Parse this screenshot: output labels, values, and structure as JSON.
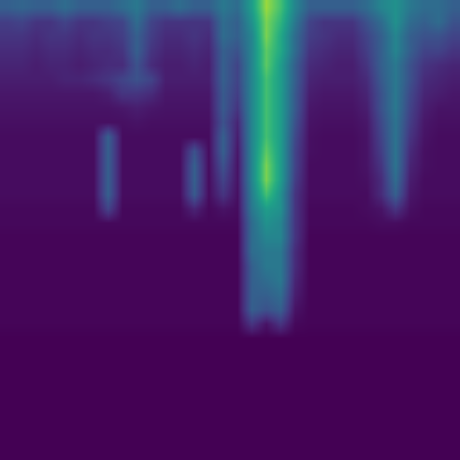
{
  "chart_data": {
    "type": "heatmap",
    "tick_labels": false,
    "grid": false,
    "zlim": [
      0,
      1
    ],
    "cells": [
      [
        0.3,
        0.32,
        0.3,
        0.3,
        0.35,
        0.3,
        0.3,
        0.3,
        0.35,
        0.4,
        0.3,
        0.3,
        0.35,
        0.3,
        0.3,
        0.4,
        0.35,
        0.55,
        0.85,
        0.7,
        0.45,
        0.3,
        0.3,
        0.3,
        0.3,
        0.35,
        0.45,
        0.5,
        0.4,
        0.35,
        0.35,
        0.3
      ],
      [
        0.18,
        0.2,
        0.15,
        0.15,
        0.2,
        0.15,
        0.15,
        0.18,
        0.2,
        0.35,
        0.2,
        0.15,
        0.15,
        0.15,
        0.15,
        0.35,
        0.3,
        0.5,
        0.8,
        0.65,
        0.4,
        0.2,
        0.15,
        0.15,
        0.15,
        0.25,
        0.35,
        0.5,
        0.35,
        0.3,
        0.35,
        0.25
      ],
      [
        0.15,
        0.15,
        0.12,
        0.15,
        0.15,
        0.12,
        0.15,
        0.15,
        0.18,
        0.3,
        0.18,
        0.12,
        0.12,
        0.15,
        0.12,
        0.35,
        0.3,
        0.45,
        0.8,
        0.6,
        0.35,
        0.18,
        0.15,
        0.12,
        0.12,
        0.2,
        0.3,
        0.45,
        0.3,
        0.25,
        0.25,
        0.2
      ],
      [
        0.12,
        0.12,
        0.1,
        0.12,
        0.12,
        0.1,
        0.12,
        0.12,
        0.15,
        0.3,
        0.15,
        0.1,
        0.1,
        0.12,
        0.1,
        0.3,
        0.25,
        0.45,
        0.75,
        0.6,
        0.35,
        0.15,
        0.12,
        0.1,
        0.1,
        0.18,
        0.3,
        0.45,
        0.3,
        0.2,
        0.2,
        0.15
      ],
      [
        0.1,
        0.1,
        0.08,
        0.1,
        0.1,
        0.08,
        0.1,
        0.12,
        0.12,
        0.25,
        0.12,
        0.08,
        0.08,
        0.1,
        0.08,
        0.3,
        0.2,
        0.45,
        0.75,
        0.55,
        0.3,
        0.12,
        0.1,
        0.08,
        0.08,
        0.15,
        0.3,
        0.4,
        0.25,
        0.15,
        0.12,
        0.1
      ],
      [
        0.08,
        0.08,
        0.08,
        0.08,
        0.1,
        0.1,
        0.12,
        0.15,
        0.2,
        0.25,
        0.2,
        0.08,
        0.08,
        0.08,
        0.08,
        0.3,
        0.2,
        0.45,
        0.7,
        0.55,
        0.3,
        0.1,
        0.08,
        0.08,
        0.08,
        0.12,
        0.28,
        0.4,
        0.25,
        0.12,
        0.1,
        0.08
      ],
      [
        0.06,
        0.06,
        0.06,
        0.06,
        0.06,
        0.06,
        0.06,
        0.08,
        0.15,
        0.15,
        0.12,
        0.06,
        0.06,
        0.06,
        0.06,
        0.28,
        0.18,
        0.45,
        0.7,
        0.55,
        0.28,
        0.08,
        0.06,
        0.06,
        0.06,
        0.1,
        0.25,
        0.4,
        0.22,
        0.1,
        0.08,
        0.06
      ],
      [
        0.05,
        0.05,
        0.05,
        0.05,
        0.05,
        0.05,
        0.05,
        0.05,
        0.06,
        0.08,
        0.06,
        0.05,
        0.05,
        0.05,
        0.05,
        0.28,
        0.15,
        0.45,
        0.7,
        0.55,
        0.28,
        0.06,
        0.05,
        0.05,
        0.05,
        0.08,
        0.25,
        0.4,
        0.2,
        0.08,
        0.05,
        0.05
      ],
      [
        0.04,
        0.04,
        0.04,
        0.04,
        0.04,
        0.04,
        0.04,
        0.04,
        0.04,
        0.05,
        0.04,
        0.04,
        0.04,
        0.04,
        0.04,
        0.25,
        0.1,
        0.45,
        0.7,
        0.55,
        0.25,
        0.05,
        0.04,
        0.04,
        0.04,
        0.06,
        0.22,
        0.38,
        0.18,
        0.06,
        0.04,
        0.04
      ],
      [
        0.03,
        0.03,
        0.03,
        0.03,
        0.03,
        0.03,
        0.03,
        0.3,
        0.03,
        0.03,
        0.03,
        0.03,
        0.03,
        0.03,
        0.03,
        0.3,
        0.08,
        0.45,
        0.7,
        0.55,
        0.22,
        0.04,
        0.03,
        0.03,
        0.03,
        0.05,
        0.2,
        0.38,
        0.15,
        0.05,
        0.03,
        0.03
      ],
      [
        0.03,
        0.03,
        0.03,
        0.03,
        0.03,
        0.03,
        0.03,
        0.3,
        0.03,
        0.03,
        0.03,
        0.03,
        0.03,
        0.25,
        0.03,
        0.3,
        0.06,
        0.45,
        0.75,
        0.55,
        0.2,
        0.04,
        0.03,
        0.03,
        0.03,
        0.05,
        0.18,
        0.38,
        0.12,
        0.04,
        0.03,
        0.03
      ],
      [
        0.03,
        0.03,
        0.03,
        0.03,
        0.03,
        0.03,
        0.03,
        0.3,
        0.03,
        0.03,
        0.03,
        0.03,
        0.03,
        0.3,
        0.03,
        0.25,
        0.05,
        0.45,
        0.8,
        0.55,
        0.2,
        0.03,
        0.03,
        0.03,
        0.03,
        0.05,
        0.15,
        0.38,
        0.1,
        0.04,
        0.03,
        0.03
      ],
      [
        0.03,
        0.03,
        0.03,
        0.03,
        0.03,
        0.03,
        0.03,
        0.3,
        0.03,
        0.03,
        0.03,
        0.03,
        0.03,
        0.3,
        0.03,
        0.2,
        0.05,
        0.45,
        0.8,
        0.55,
        0.18,
        0.03,
        0.03,
        0.03,
        0.03,
        0.04,
        0.12,
        0.35,
        0.08,
        0.03,
        0.03,
        0.03
      ],
      [
        0.03,
        0.03,
        0.03,
        0.03,
        0.03,
        0.03,
        0.03,
        0.3,
        0.03,
        0.03,
        0.03,
        0.03,
        0.03,
        0.28,
        0.03,
        0.15,
        0.04,
        0.42,
        0.7,
        0.5,
        0.15,
        0.03,
        0.03,
        0.03,
        0.03,
        0.03,
        0.12,
        0.3,
        0.06,
        0.03,
        0.03,
        0.03
      ],
      [
        0.02,
        0.02,
        0.02,
        0.02,
        0.02,
        0.02,
        0.02,
        0.2,
        0.02,
        0.02,
        0.02,
        0.02,
        0.02,
        0.1,
        0.02,
        0.05,
        0.03,
        0.4,
        0.55,
        0.5,
        0.15,
        0.02,
        0.02,
        0.02,
        0.02,
        0.03,
        0.05,
        0.15,
        0.04,
        0.02,
        0.02,
        0.02
      ],
      [
        0.02,
        0.02,
        0.02,
        0.02,
        0.02,
        0.02,
        0.02,
        0.02,
        0.02,
        0.02,
        0.02,
        0.02,
        0.02,
        0.02,
        0.02,
        0.02,
        0.02,
        0.35,
        0.5,
        0.45,
        0.15,
        0.02,
        0.02,
        0.02,
        0.02,
        0.02,
        0.03,
        0.03,
        0.02,
        0.02,
        0.02,
        0.02
      ],
      [
        0.01,
        0.01,
        0.01,
        0.01,
        0.01,
        0.01,
        0.01,
        0.01,
        0.01,
        0.01,
        0.01,
        0.01,
        0.01,
        0.01,
        0.01,
        0.01,
        0.01,
        0.35,
        0.45,
        0.45,
        0.15,
        0.01,
        0.01,
        0.01,
        0.01,
        0.01,
        0.01,
        0.01,
        0.01,
        0.01,
        0.01,
        0.01
      ],
      [
        0.01,
        0.01,
        0.01,
        0.01,
        0.01,
        0.01,
        0.01,
        0.01,
        0.01,
        0.01,
        0.01,
        0.01,
        0.01,
        0.01,
        0.01,
        0.01,
        0.01,
        0.35,
        0.4,
        0.4,
        0.12,
        0.01,
        0.01,
        0.01,
        0.01,
        0.01,
        0.01,
        0.01,
        0.01,
        0.01,
        0.01,
        0.01
      ],
      [
        0.01,
        0.01,
        0.01,
        0.01,
        0.01,
        0.01,
        0.01,
        0.01,
        0.01,
        0.01,
        0.01,
        0.01,
        0.01,
        0.01,
        0.01,
        0.01,
        0.01,
        0.3,
        0.4,
        0.4,
        0.12,
        0.01,
        0.01,
        0.01,
        0.01,
        0.01,
        0.01,
        0.01,
        0.01,
        0.01,
        0.01,
        0.01
      ],
      [
        0.01,
        0.01,
        0.01,
        0.01,
        0.01,
        0.01,
        0.01,
        0.01,
        0.01,
        0.01,
        0.01,
        0.01,
        0.01,
        0.01,
        0.01,
        0.01,
        0.01,
        0.3,
        0.35,
        0.4,
        0.1,
        0.01,
        0.01,
        0.01,
        0.01,
        0.01,
        0.01,
        0.01,
        0.01,
        0.01,
        0.01,
        0.01
      ],
      [
        0.01,
        0.01,
        0.01,
        0.01,
        0.01,
        0.01,
        0.01,
        0.01,
        0.01,
        0.01,
        0.01,
        0.01,
        0.01,
        0.01,
        0.01,
        0.01,
        0.01,
        0.3,
        0.3,
        0.35,
        0.08,
        0.01,
        0.01,
        0.01,
        0.01,
        0.01,
        0.01,
        0.01,
        0.01,
        0.01,
        0.01,
        0.01
      ],
      [
        0.01,
        0.01,
        0.01,
        0.01,
        0.01,
        0.01,
        0.01,
        0.01,
        0.01,
        0.01,
        0.01,
        0.01,
        0.01,
        0.01,
        0.01,
        0.01,
        0.01,
        0.3,
        0.25,
        0.3,
        0.05,
        0.01,
        0.01,
        0.01,
        0.01,
        0.01,
        0.01,
        0.01,
        0.01,
        0.01,
        0.01,
        0.01
      ],
      [
        0.01,
        0.01,
        0.01,
        0.01,
        0.01,
        0.01,
        0.01,
        0.01,
        0.01,
        0.01,
        0.01,
        0.01,
        0.01,
        0.01,
        0.01,
        0.01,
        0.01,
        0.15,
        0.05,
        0.15,
        0.02,
        0.01,
        0.01,
        0.01,
        0.01,
        0.01,
        0.01,
        0.01,
        0.01,
        0.01,
        0.01,
        0.01
      ],
      [
        0,
        0,
        0,
        0,
        0,
        0,
        0,
        0,
        0,
        0,
        0,
        0,
        0,
        0,
        0,
        0,
        0,
        0,
        0,
        0,
        0,
        0,
        0,
        0,
        0,
        0,
        0,
        0,
        0,
        0,
        0,
        0
      ],
      [
        0,
        0,
        0,
        0,
        0,
        0,
        0,
        0,
        0,
        0,
        0,
        0,
        0,
        0,
        0,
        0,
        0,
        0,
        0,
        0,
        0,
        0,
        0,
        0,
        0,
        0,
        0,
        0,
        0,
        0,
        0,
        0
      ],
      [
        0,
        0,
        0,
        0,
        0,
        0,
        0,
        0,
        0,
        0,
        0,
        0,
        0,
        0,
        0,
        0,
        0,
        0,
        0,
        0,
        0,
        0,
        0,
        0,
        0,
        0,
        0,
        0,
        0,
        0,
        0,
        0
      ],
      [
        0,
        0,
        0,
        0,
        0,
        0,
        0,
        0,
        0,
        0,
        0,
        0,
        0,
        0,
        0,
        0,
        0,
        0,
        0,
        0,
        0,
        0,
        0,
        0,
        0,
        0,
        0,
        0,
        0,
        0,
        0,
        0
      ],
      [
        0,
        0,
        0,
        0,
        0,
        0,
        0,
        0,
        0,
        0,
        0,
        0,
        0,
        0,
        0,
        0,
        0,
        0,
        0,
        0,
        0,
        0,
        0,
        0,
        0,
        0,
        0,
        0,
        0,
        0,
        0,
        0
      ],
      [
        0,
        0,
        0,
        0,
        0,
        0,
        0,
        0,
        0,
        0,
        0,
        0,
        0,
        0,
        0,
        0,
        0,
        0,
        0,
        0,
        0,
        0,
        0,
        0,
        0,
        0,
        0,
        0,
        0,
        0,
        0,
        0
      ],
      [
        0,
        0,
        0,
        0,
        0,
        0,
        0,
        0,
        0,
        0,
        0,
        0,
        0,
        0,
        0,
        0,
        0,
        0,
        0,
        0,
        0,
        0,
        0,
        0,
        0,
        0,
        0,
        0,
        0,
        0,
        0,
        0
      ],
      [
        0,
        0,
        0,
        0,
        0,
        0,
        0,
        0,
        0,
        0,
        0,
        0,
        0,
        0,
        0,
        0,
        0,
        0,
        0,
        0,
        0,
        0,
        0,
        0,
        0,
        0,
        0,
        0,
        0,
        0,
        0,
        0
      ],
      [
        0,
        0,
        0,
        0,
        0,
        0,
        0,
        0,
        0,
        0,
        0,
        0,
        0,
        0,
        0,
        0,
        0,
        0,
        0,
        0,
        0,
        0,
        0,
        0,
        0,
        0,
        0,
        0,
        0,
        0,
        0,
        0
      ]
    ]
  }
}
